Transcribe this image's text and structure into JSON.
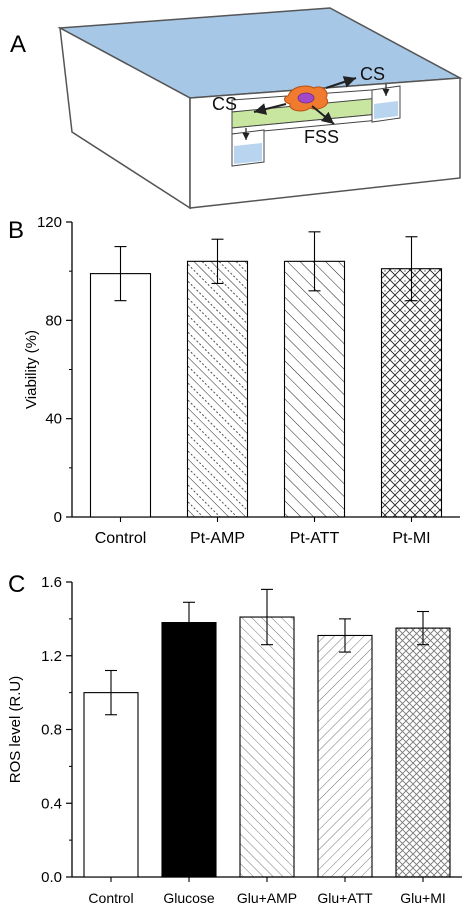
{
  "panels": {
    "a": {
      "letter": "A"
    },
    "b": {
      "letter": "B"
    },
    "c": {
      "letter": "C"
    }
  },
  "diagram": {
    "labels": {
      "cs_right": "CS",
      "cs_left": "CS",
      "fss": "FSS"
    },
    "colors": {
      "lid": "#a7c7e7",
      "channel": "#c9e6a1",
      "cell": "#f07b2e",
      "nucleus": "#a349c7",
      "well": "#b8d4ee"
    }
  },
  "chart_data": [
    {
      "type": "bar",
      "panel": "B",
      "ylabel": "Viability (%)",
      "xlabel": "",
      "ylim": [
        0,
        120
      ],
      "yticks": [
        0,
        40,
        80,
        120
      ],
      "categories": [
        "Control",
        "Pt-AMP",
        "Pt-ATT",
        "Pt-MI"
      ],
      "values": [
        99,
        104,
        104,
        101
      ],
      "errors": [
        11,
        9,
        12,
        13
      ],
      "patterns": [
        "none",
        "diag-dotted",
        "diag-dense",
        "crosshatch-dotted"
      ]
    },
    {
      "type": "bar",
      "panel": "C",
      "ylabel": "ROS level (R.U)",
      "xlabel": "",
      "ylim": [
        0,
        1.6
      ],
      "yticks": [
        0.0,
        0.4,
        0.8,
        1.2,
        1.6
      ],
      "categories": [
        "Control",
        "Glucose",
        "Glu+AMP",
        "Glu+ATT",
        "Glu+MI"
      ],
      "values": [
        1.0,
        1.38,
        1.41,
        1.31,
        1.35
      ],
      "errors": [
        0.12,
        0.11,
        0.15,
        0.09,
        0.09
      ],
      "patterns": [
        "none",
        "solid-black",
        "diag-gray",
        "diag-back-gray",
        "crosshatch-gray"
      ]
    }
  ]
}
